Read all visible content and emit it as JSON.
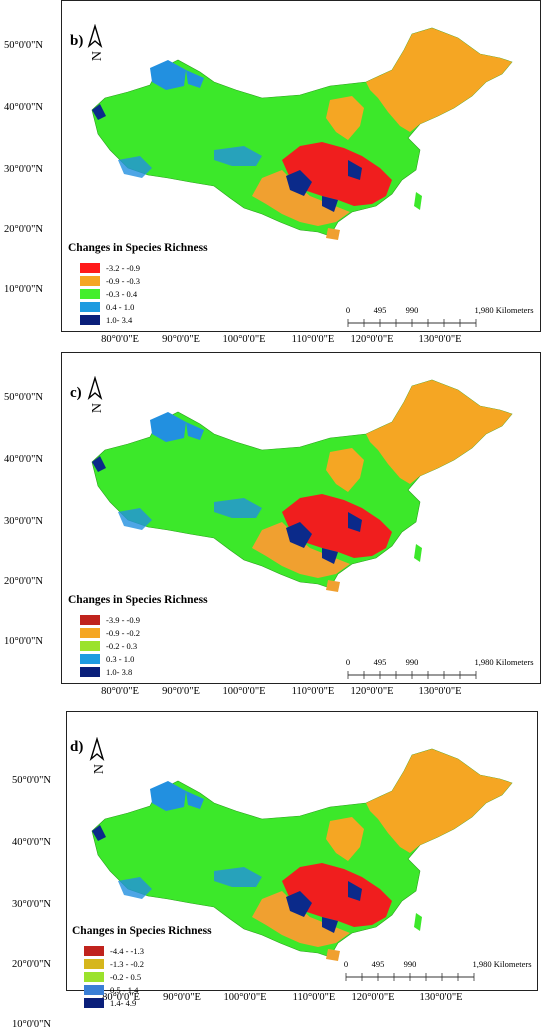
{
  "latitude_labels": [
    "50°0'0\"N",
    "40°0'0\"N",
    "30°0'0\"N",
    "20°0'0\"N",
    "10°0'0\"N"
  ],
  "longitude_labels": [
    "80°0'0\"E",
    "90°0'0\"E",
    "100°0'0\"E",
    "110°0'0\"E",
    "120°0'0\"E",
    "130°0'0\"E"
  ],
  "scale_bar": {
    "ticks": [
      "0",
      "495",
      "990",
      "1,980 Kilometers"
    ]
  },
  "panels": [
    {
      "letter": "b)",
      "legend_title": "Changes in Species Richness",
      "legend": [
        {
          "label": "-3.2 - -0.9",
          "color": "#ff1a1a"
        },
        {
          "label": "-0.9 - -0.3",
          "color": "#f5a623"
        },
        {
          "label": "-0.3 - 0.4",
          "color": "#44ee2c"
        },
        {
          "label": "0.4 - 1.0",
          "color": "#1e9be0"
        },
        {
          "label": "1.0- 3.4",
          "color": "#0a1f7a"
        }
      ]
    },
    {
      "letter": "c)",
      "legend_title": "Changes in Species Richness",
      "legend": [
        {
          "label": "-3.9 - -0.9",
          "color": "#c0231d"
        },
        {
          "label": "-0.9 - -0.2",
          "color": "#f5a623"
        },
        {
          "label": "-0.2 - 0.3",
          "color": "#9be22c"
        },
        {
          "label": "0.3 - 1.0",
          "color": "#1e9be0"
        },
        {
          "label": "1.0- 3.8",
          "color": "#0a1f7a"
        }
      ]
    },
    {
      "letter": "d)",
      "legend_title": "Changes in Species Richness",
      "legend": [
        {
          "label": "-4.4 - -1.3",
          "color": "#c0231d"
        },
        {
          "label": "-1.3 - -0.2",
          "color": "#d6b61c"
        },
        {
          "label": "-0.2 - 0.5",
          "color": "#9be22c"
        },
        {
          "label": "0.5 - 1.4",
          "color": "#3a7fd6"
        },
        {
          "label": "1.4- 4.9",
          "color": "#0a1f7a"
        }
      ]
    }
  ],
  "map_colors": {
    "land": "#3ce82a",
    "northeast": "#f5a623",
    "south_red": "#f01e1e",
    "south_orange": "#f0a030",
    "blue": "#2290e0",
    "darkblue": "#0b2a8a"
  }
}
